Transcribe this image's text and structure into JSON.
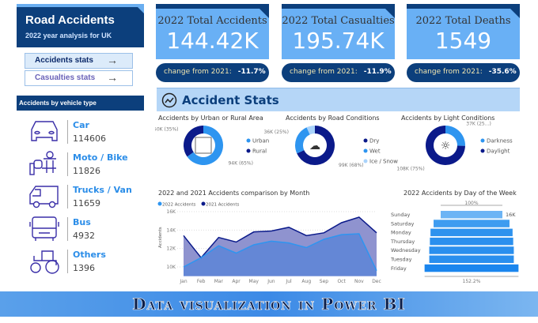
{
  "header": {
    "title": "Road Accidents",
    "subtitle": "2022 year analysis for UK"
  },
  "nav": [
    {
      "label": "Accidents stats",
      "active": true
    },
    {
      "label": "Casualties stats",
      "active": false
    }
  ],
  "vehicles": {
    "title": "Accidents by vehicle type",
    "items": [
      {
        "label": "Car",
        "value": "114606",
        "icon": "car-icon"
      },
      {
        "label": "Moto / Bike",
        "value": "11826",
        "icon": "motorbike-icon"
      },
      {
        "label": "Trucks / Van",
        "value": "11659",
        "icon": "van-icon"
      },
      {
        "label": "Bus",
        "value": "4932",
        "icon": "bus-icon"
      },
      {
        "label": "Others",
        "value": "1396",
        "icon": "tractor-icon"
      }
    ]
  },
  "kpis": [
    {
      "title": "2022 Total Accidents",
      "value": "144.42K",
      "change_label": "change from 2021:",
      "change": "-11.7%"
    },
    {
      "title": "2022 Total Casualties",
      "value": "195.74K",
      "change_label": "change from 2021:",
      "change": "-11.9%"
    },
    {
      "title": "2022 Total Deaths",
      "value": "1549",
      "change_label": "change from 2021:",
      "change": "-35.6%"
    }
  ],
  "stats_title": "Accident Stats",
  "colors": {
    "navy": "#0c3f7c",
    "light": "#69b0f5",
    "dark_series": "#0b1a8a",
    "bright": "#2e95f0",
    "pale": "#a9d3fb"
  },
  "chart_data": [
    {
      "type": "pie",
      "title": "Accidents by Urban or Rural Area",
      "donut": true,
      "slices": [
        {
          "name": "Urban",
          "value": 94,
          "label": "94K (65%)",
          "color": "#2e95f0"
        },
        {
          "name": "Rural",
          "value": 50,
          "label": "50K (35%)",
          "color": "#0b1a8a"
        }
      ]
    },
    {
      "type": "pie",
      "title": "Accidents by Road Conditions",
      "donut": true,
      "slices": [
        {
          "name": "Dry",
          "value": 99,
          "label": "99K (68%)",
          "color": "#0b1a8a"
        },
        {
          "name": "Wet",
          "value": 36,
          "label": "36K (25%)",
          "color": "#2e95f0"
        },
        {
          "name": "Ice / Snow",
          "value": 10,
          "label": "",
          "color": "#a9d3fb"
        }
      ]
    },
    {
      "type": "pie",
      "title": "Accidents by Light Conditions",
      "donut": true,
      "slices": [
        {
          "name": "Darkness",
          "value": 37,
          "label": "37K (25...)",
          "color": "#2e95f0"
        },
        {
          "name": "Daylight",
          "value": 108,
          "label": "108K (75%)",
          "color": "#0b1a8a"
        }
      ]
    },
    {
      "type": "area",
      "title": "2022 and 2021 Accidents comparison by Month",
      "ylabel": "Accidents",
      "ylim": [
        9000,
        16500
      ],
      "yticks": [
        {
          "v": 10000,
          "t": "10K"
        },
        {
          "v": 12000,
          "t": "12K"
        },
        {
          "v": 14000,
          "t": "14K"
        },
        {
          "v": 16000,
          "t": "16K"
        }
      ],
      "categories": [
        "Jan",
        "Feb",
        "Mar",
        "Apr",
        "May",
        "Jun",
        "Jul",
        "Aug",
        "Sep",
        "Oct",
        "Nov",
        "Dec"
      ],
      "series": [
        {
          "name": "2022 Accidents",
          "color": "#2e95f0",
          "values": [
            10000,
            11000,
            12300,
            11500,
            12400,
            12800,
            12600,
            12100,
            13000,
            13500,
            13600,
            9600
          ]
        },
        {
          "name": "2021 Accidents",
          "color": "#0b1a8a",
          "values": [
            13400,
            11000,
            13200,
            12700,
            13800,
            13900,
            14300,
            13400,
            13700,
            14800,
            15400,
            13700
          ]
        }
      ],
      "legend": "top-left",
      "grid": true
    },
    {
      "type": "funnel",
      "title": "2022 Accidents by Day of the Week",
      "categories": [
        "Sunday",
        "Saturday",
        "Monday",
        "Thursday",
        "Wednesday",
        "Tuesday",
        "Friday"
      ],
      "values": [
        1.0,
        1.23,
        1.33,
        1.35,
        1.37,
        1.37,
        1.522
      ],
      "top_label": "100%",
      "top_value": "16K",
      "bottom_label": "152.2%"
    }
  ],
  "footer": "Data visualization in  Power BI"
}
